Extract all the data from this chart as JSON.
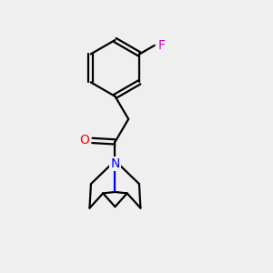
{
  "background_color": "#efefef",
  "bond_color": "#000000",
  "atom_colors": {
    "O": "#ff0000",
    "N": "#0000ff",
    "F": "#cc00cc"
  },
  "figsize": [
    3.0,
    3.0
  ],
  "dpi": 100,
  "lw": 1.6
}
